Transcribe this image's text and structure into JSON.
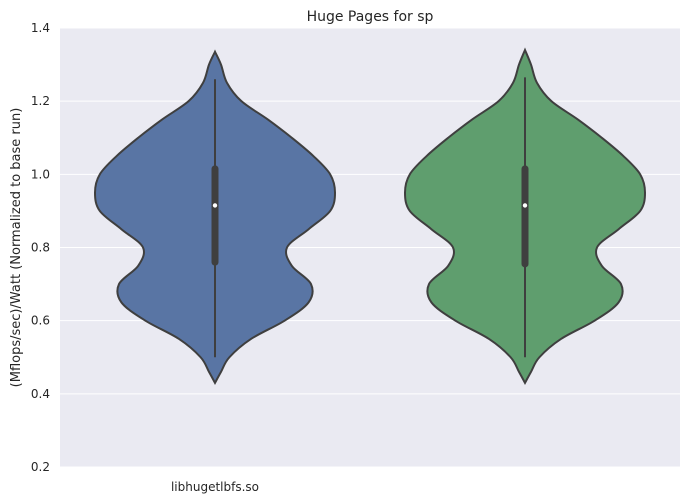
{
  "chart_data": {
    "type": "violin",
    "title": "Huge Pages for sp",
    "xlabel": "",
    "ylabel": "(Mflops/sec)/Watt (Normalized to base run)",
    "ylim": [
      0.2,
      1.4
    ],
    "yticks": [
      "0.2",
      "0.4",
      "0.6",
      "0.8",
      "1.0",
      "1.2",
      "1.4"
    ],
    "grid": true,
    "categories": [
      "libhugetlbfs.so",
      ""
    ],
    "series": [
      {
        "color": "#5975a4",
        "min": 0.5,
        "q1": 0.76,
        "median": 0.915,
        "q3": 1.015,
        "max": 1.26,
        "violin_min": 0.43,
        "violin_max": 1.335,
        "density_profile": [
          [
            0.43,
            0.0
          ],
          [
            0.46,
            0.05
          ],
          [
            0.5,
            0.12
          ],
          [
            0.55,
            0.3
          ],
          [
            0.6,
            0.58
          ],
          [
            0.65,
            0.78
          ],
          [
            0.7,
            0.8
          ],
          [
            0.75,
            0.64
          ],
          [
            0.8,
            0.6
          ],
          [
            0.85,
            0.78
          ],
          [
            0.9,
            0.96
          ],
          [
            0.95,
            1.0
          ],
          [
            1.0,
            0.96
          ],
          [
            1.05,
            0.82
          ],
          [
            1.1,
            0.64
          ],
          [
            1.15,
            0.44
          ],
          [
            1.2,
            0.22
          ],
          [
            1.25,
            0.1
          ],
          [
            1.3,
            0.05
          ],
          [
            1.335,
            0.0
          ]
        ]
      },
      {
        "color": "#5f9e6e",
        "min": 0.5,
        "q1": 0.755,
        "median": 0.915,
        "q3": 1.015,
        "max": 1.265,
        "violin_min": 0.43,
        "violin_max": 1.34,
        "density_profile": [
          [
            0.43,
            0.0
          ],
          [
            0.46,
            0.05
          ],
          [
            0.5,
            0.12
          ],
          [
            0.55,
            0.3
          ],
          [
            0.6,
            0.58
          ],
          [
            0.65,
            0.78
          ],
          [
            0.7,
            0.8
          ],
          [
            0.75,
            0.64
          ],
          [
            0.8,
            0.6
          ],
          [
            0.85,
            0.78
          ],
          [
            0.9,
            0.96
          ],
          [
            0.95,
            1.0
          ],
          [
            1.0,
            0.96
          ],
          [
            1.05,
            0.82
          ],
          [
            1.1,
            0.64
          ],
          [
            1.15,
            0.44
          ],
          [
            1.2,
            0.22
          ],
          [
            1.25,
            0.1
          ],
          [
            1.3,
            0.05
          ],
          [
            1.34,
            0.0
          ]
        ]
      }
    ]
  }
}
